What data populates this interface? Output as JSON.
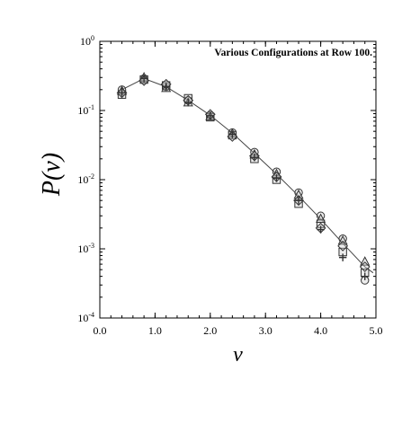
{
  "chart_data": {
    "type": "scatter",
    "title": "Various Configurations at Row 100.",
    "xlabel": "v",
    "ylabel": "P(v)",
    "xlim": [
      0.0,
      5.0
    ],
    "ylim": [
      0.0001,
      1
    ],
    "yscale": "log",
    "grid": false,
    "legend": "none",
    "xticks": [
      {
        "value": 0.0,
        "label": "0.0"
      },
      {
        "value": 1.0,
        "label": "1.0"
      },
      {
        "value": 2.0,
        "label": "2.0"
      },
      {
        "value": 3.0,
        "label": "3.0"
      },
      {
        "value": 4.0,
        "label": "4.0"
      },
      {
        "value": 5.0,
        "label": "5.0"
      }
    ],
    "yticks": [
      {
        "value": 0.0001,
        "base": "10",
        "exp": "-4"
      },
      {
        "value": 0.001,
        "base": "10",
        "exp": "-3"
      },
      {
        "value": 0.01,
        "base": "10",
        "exp": "-2"
      },
      {
        "value": 0.1,
        "base": "10",
        "exp": "-1"
      },
      {
        "value": 1,
        "base": "10",
        "exp": "0"
      }
    ],
    "series": [
      {
        "marker": "circle",
        "x": [
          0.4,
          0.8,
          1.2,
          1.6,
          2.0,
          2.4,
          2.8,
          3.2,
          3.6,
          4.0,
          4.4,
          4.8
        ],
        "y": [
          0.2,
          0.29,
          0.22,
          0.14,
          0.085,
          0.048,
          0.025,
          0.013,
          0.0065,
          0.003,
          0.0014,
          0.00035
        ]
      },
      {
        "marker": "square",
        "x": [
          0.4,
          0.8,
          1.2,
          1.6,
          2.0,
          2.4,
          2.8,
          3.2,
          3.6,
          4.0,
          4.4,
          4.8
        ],
        "y": [
          0.17,
          0.28,
          0.23,
          0.15,
          0.08,
          0.044,
          0.02,
          0.01,
          0.0045,
          0.0023,
          0.0009,
          0.00045
        ]
      },
      {
        "marker": "triangle",
        "x": [
          0.4,
          0.8,
          1.2,
          1.6,
          2.0,
          2.4,
          2.8,
          3.2,
          3.6,
          4.0,
          4.4,
          4.8
        ],
        "y": [
          0.19,
          0.3,
          0.21,
          0.13,
          0.082,
          0.046,
          0.023,
          0.012,
          0.006,
          0.0027,
          0.0013,
          0.00065
        ]
      },
      {
        "marker": "diamond",
        "x": [
          0.4,
          0.8,
          1.2,
          1.6,
          2.0,
          2.4,
          2.8,
          3.2,
          3.6,
          4.0,
          4.4,
          4.8
        ],
        "y": [
          0.18,
          0.27,
          0.24,
          0.14,
          0.088,
          0.042,
          0.022,
          0.011,
          0.005,
          0.002,
          0.0011,
          0.00055
        ]
      },
      {
        "marker": "plus",
        "x": [
          0.4,
          0.8,
          1.2,
          1.6,
          2.0,
          2.4,
          2.8,
          3.2,
          3.6,
          4.0,
          4.4,
          4.8
        ],
        "y": [
          0.18,
          0.29,
          0.22,
          0.13,
          0.084,
          0.045,
          0.021,
          0.0105,
          0.005,
          0.0019,
          0.00075,
          0.0004
        ]
      }
    ],
    "fit_line": {
      "x": [
        0.4,
        0.8,
        1.2,
        1.6,
        2.0,
        2.4,
        2.8,
        3.2,
        3.6,
        4.0,
        4.4,
        4.8,
        4.95
      ],
      "y": [
        0.2,
        0.29,
        0.22,
        0.14,
        0.085,
        0.047,
        0.024,
        0.012,
        0.0058,
        0.0027,
        0.0012,
        0.00055,
        0.00045
      ]
    },
    "colors": {
      "line": "#444444",
      "marker": "#333333",
      "axis": "#000000",
      "background": "#ffffff"
    }
  }
}
